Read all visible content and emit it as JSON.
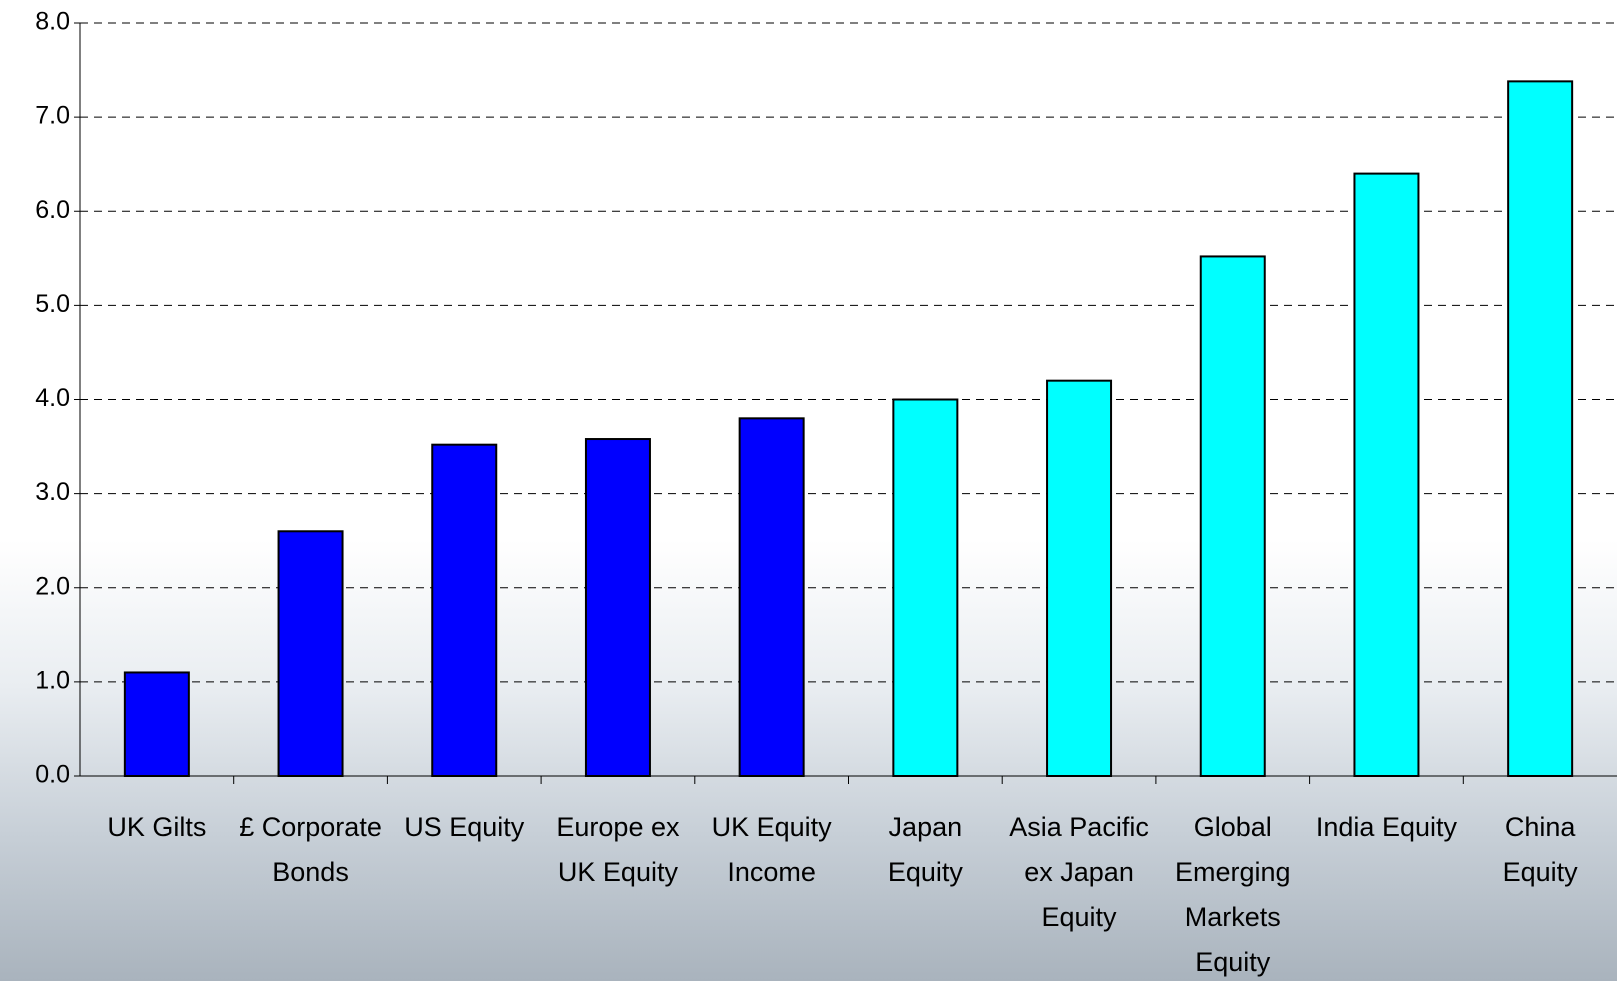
{
  "chart_data": {
    "type": "bar",
    "categories": [
      "UK Gilts",
      "£ Corporate Bonds",
      "US Equity",
      "Europe ex UK Equity",
      "UK Equity Income",
      "Japan Equity",
      "Asia Pacific ex Japan Equity",
      "Global Emerging Markets Equity",
      "India Equity",
      "China Equity"
    ],
    "values": [
      1.1,
      2.6,
      3.52,
      3.58,
      3.8,
      4.0,
      4.2,
      5.52,
      6.4,
      7.38
    ],
    "colors": [
      "#0000ff",
      "#0000ff",
      "#0000ff",
      "#0000ff",
      "#0000ff",
      "#00ffff",
      "#00ffff",
      "#00ffff",
      "#00ffff",
      "#00ffff"
    ],
    "ylim": [
      0,
      8
    ],
    "yticks": [
      {
        "value": 0,
        "label": "0.0"
      },
      {
        "value": 1,
        "label": "1.0"
      },
      {
        "value": 2,
        "label": "2.0"
      },
      {
        "value": 3,
        "label": "3.0"
      },
      {
        "value": 4,
        "label": "4.0"
      },
      {
        "value": 5,
        "label": "5.0"
      },
      {
        "value": 6,
        "label": "6.0"
      },
      {
        "value": 7,
        "label": "7.0"
      },
      {
        "value": 8,
        "label": "8.0"
      }
    ],
    "grid": true
  }
}
